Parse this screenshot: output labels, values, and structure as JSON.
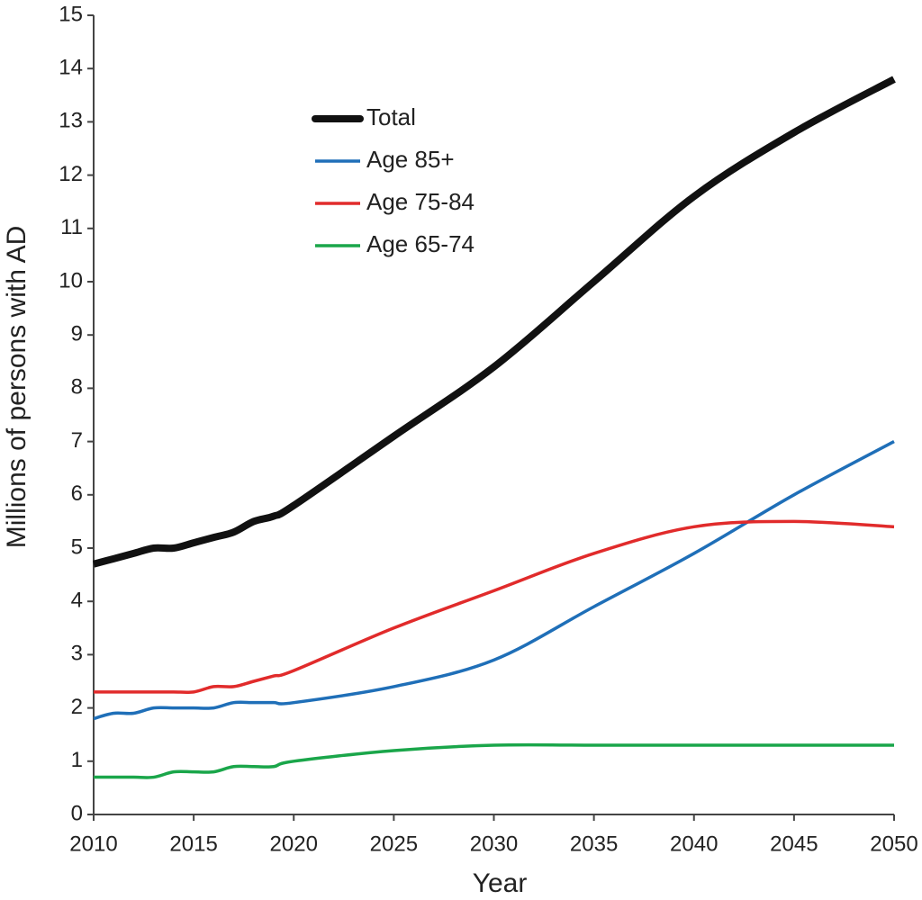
{
  "chart_data": {
    "type": "line",
    "x_label": "Year",
    "y_label": "Millions of persons with AD",
    "x": [
      2010,
      2011,
      2012,
      2013,
      2014,
      2015,
      2016,
      2017,
      2018,
      2019,
      2020,
      2025,
      2030,
      2035,
      2040,
      2045,
      2050
    ],
    "series": [
      {
        "name": "Total",
        "color": "#111111",
        "line_width": 8,
        "values": [
          4.7,
          4.8,
          4.9,
          5.0,
          5.0,
          5.1,
          5.2,
          5.3,
          5.5,
          5.6,
          5.8,
          7.1,
          8.4,
          10.0,
          11.6,
          12.8,
          13.8
        ]
      },
      {
        "name": "Age 85+",
        "color": "#1f6fb8",
        "line_width": 3.5,
        "values": [
          1.8,
          1.9,
          1.9,
          2.0,
          2.0,
          2.0,
          2.0,
          2.1,
          2.1,
          2.1,
          2.1,
          2.4,
          2.9,
          3.9,
          4.9,
          6.0,
          7.0
        ]
      },
      {
        "name": "Age 75-84",
        "color": "#e12b2b",
        "line_width": 3.5,
        "values": [
          2.3,
          2.3,
          2.3,
          2.3,
          2.3,
          2.3,
          2.4,
          2.4,
          2.5,
          2.6,
          2.7,
          3.5,
          4.2,
          4.9,
          5.4,
          5.5,
          5.4
        ]
      },
      {
        "name": "Age 65-74",
        "color": "#1aa64a",
        "line_width": 3.5,
        "values": [
          0.7,
          0.7,
          0.7,
          0.7,
          0.8,
          0.8,
          0.8,
          0.9,
          0.9,
          0.9,
          1.0,
          1.2,
          1.3,
          1.3,
          1.3,
          1.3,
          1.3
        ]
      }
    ],
    "xlim": [
      2010,
      2050
    ],
    "xticks": [
      2010,
      2015,
      2020,
      2025,
      2030,
      2035,
      2040,
      2045,
      2050
    ],
    "ylim": [
      0,
      15
    ],
    "yticks": [
      0,
      1,
      2,
      3,
      4,
      5,
      6,
      7,
      8,
      9,
      10,
      11,
      12,
      13,
      14,
      15
    ],
    "grid": false
  }
}
